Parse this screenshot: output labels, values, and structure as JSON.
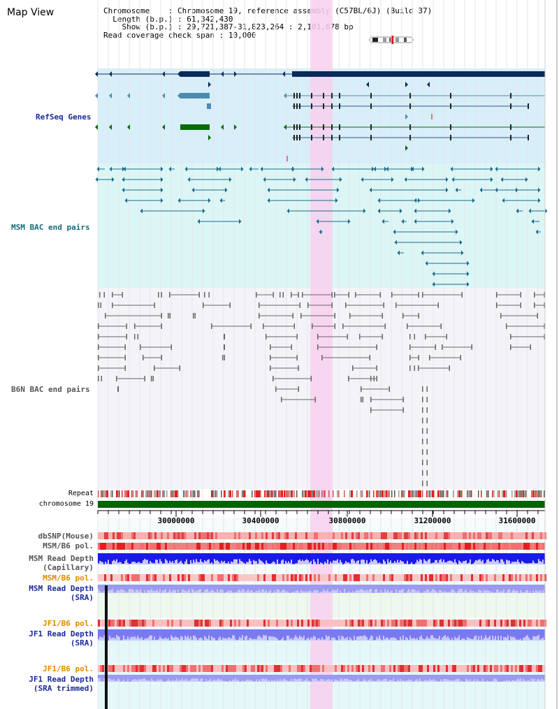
{
  "page": {
    "title": "Map View",
    "chromosome_key": "Chromosome",
    "chromosome_val": "Chromosome 19, reference assembly (C57BL/6J) (Build 37)",
    "length_key": "Length (b.p.)",
    "length_val": "61,342,430",
    "show_key": "Show (b.p.)",
    "show_val": "29,721,387-31,823,264 : 2,101,878 bp",
    "coverage_key": "Read coverage check span",
    "coverage_val": "10,000"
  },
  "tracks": {
    "refseq": "RefSeq Genes",
    "msm_bac": "MSM BAC end pairs",
    "b6n_bac": "B6N BAC end pairs",
    "repeat": "Repeat",
    "chromosome": "chromosome 19",
    "dbsnp": "dbSNP(Mouse)",
    "msm_b6_pol_1": "MSM/B6 pol.",
    "msm_depth_cap_1": "MSM Read Depth",
    "msm_depth_cap_2": "(Capillary)",
    "msm_b6_pol_2": "MSM/B6 pol.",
    "msm_depth_sra_1": "MSM Read Depth",
    "msm_depth_sra_2": "(SRA)",
    "jf1_b6_pol_1": "JF1/B6 pol.",
    "jf1_depth_sra_1": "JF1 Read Depth",
    "jf1_depth_sra_2": "(SRA)",
    "jf1_b6_pol_2": "JF1/B6 pol.",
    "jf1_depth_trim_1": "JF1 Read Depth",
    "jf1_depth_trim_2": "(SRA trimmed)"
  },
  "axis": {
    "ticks": [
      "30000000",
      "30400000",
      "30800000",
      "31200000",
      "31600000"
    ]
  },
  "colors": {
    "refseq_bg": "#d8eef8",
    "msm_bg": "#dcf6f6",
    "highlight": "#f8d8f0",
    "chrom_bar": "#006400",
    "depth_blue": "#1a1ae8"
  }
}
